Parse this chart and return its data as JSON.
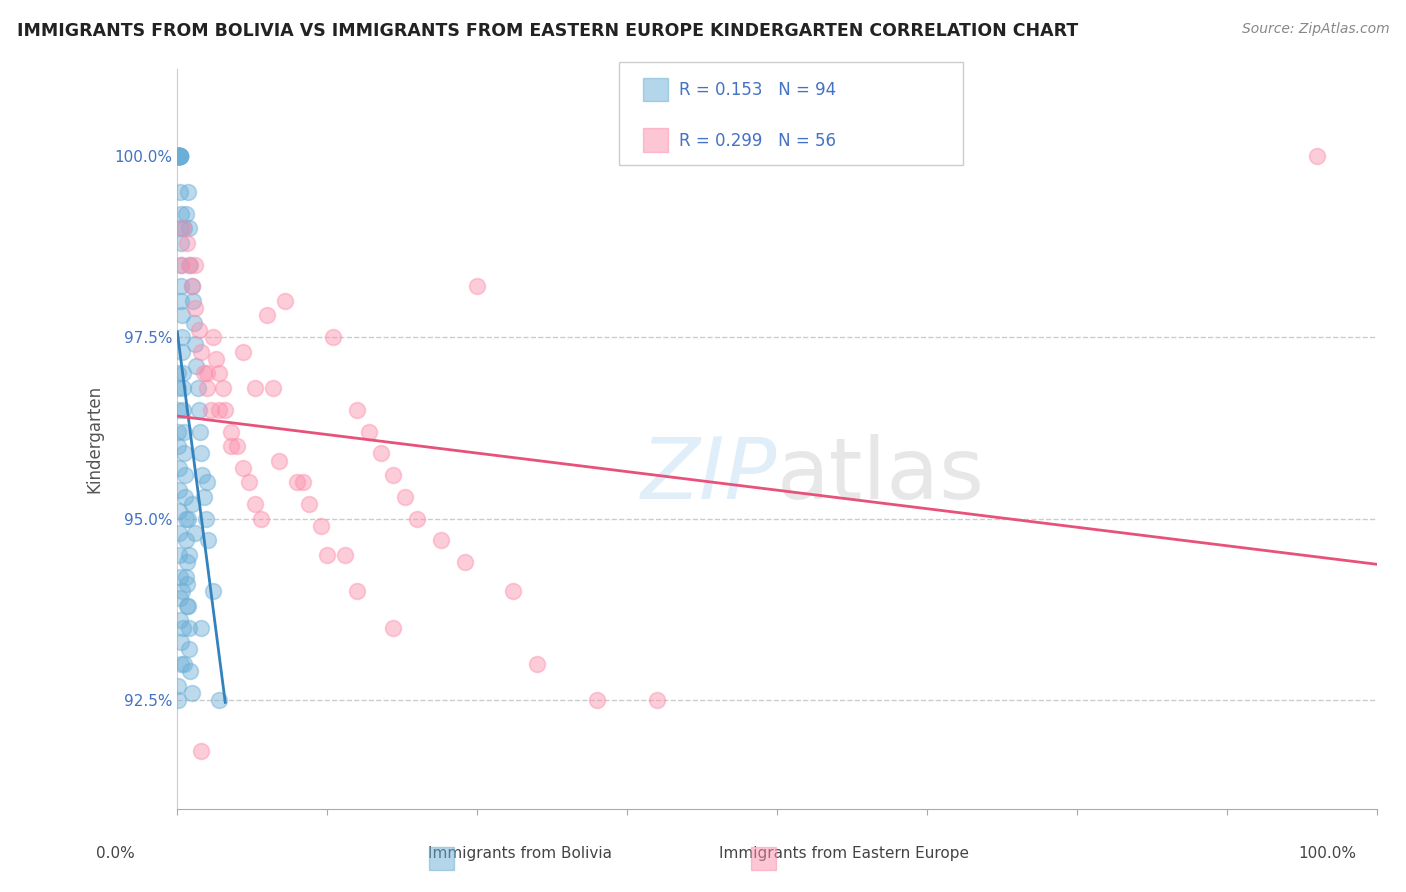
{
  "title": "IMMIGRANTS FROM BOLIVIA VS IMMIGRANTS FROM EASTERN EUROPE KINDERGARTEN CORRELATION CHART",
  "source_text": "Source: ZipAtlas.com",
  "ylabel": "Kindergarten",
  "bolivia_R": 0.153,
  "bolivia_N": 94,
  "eastern_R": 0.299,
  "eastern_N": 56,
  "bolivia_color": "#6baed6",
  "eastern_color": "#fc8eac",
  "bolivia_line_color": "#3182bd",
  "eastern_line_color": "#e8527a",
  "x_min": 0.0,
  "x_max": 100.0,
  "y_min": 91.0,
  "y_max": 101.2,
  "yticks": [
    92.5,
    95.0,
    97.5,
    100.0
  ],
  "ytick_labels": [
    "92.5%",
    "95.0%",
    "97.5%",
    "100.0%"
  ],
  "bolivia_x": [
    0.05,
    0.08,
    0.1,
    0.1,
    0.1,
    0.12,
    0.12,
    0.13,
    0.14,
    0.15,
    0.15,
    0.16,
    0.17,
    0.18,
    0.19,
    0.2,
    0.21,
    0.22,
    0.23,
    0.24,
    0.25,
    0.27,
    0.28,
    0.3,
    0.32,
    0.33,
    0.35,
    0.38,
    0.4,
    0.43,
    0.45,
    0.48,
    0.5,
    0.55,
    0.55,
    0.6,
    0.62,
    0.65,
    0.7,
    0.7,
    0.75,
    0.8,
    0.85,
    0.9,
    0.9,
    0.95,
    1.0,
    1.0,
    1.1,
    1.1,
    1.2,
    1.2,
    1.3,
    1.4,
    1.5,
    1.6,
    1.7,
    1.8,
    1.9,
    2.0,
    2.1,
    2.2,
    2.4,
    2.6,
    0.06,
    0.07,
    0.08,
    0.09,
    0.1,
    0.11,
    0.12,
    0.13,
    0.15,
    0.17,
    0.19,
    0.22,
    0.25,
    0.3,
    0.35,
    0.4,
    0.5,
    0.6,
    0.7,
    0.8,
    0.9,
    1.0,
    1.2,
    1.5,
    2.0,
    2.5,
    3.0,
    3.5,
    0.1,
    0.1
  ],
  "bolivia_y": [
    100.0,
    100.0,
    100.0,
    100.0,
    100.0,
    100.0,
    100.0,
    100.0,
    100.0,
    100.0,
    100.0,
    100.0,
    100.0,
    100.0,
    100.0,
    100.0,
    100.0,
    100.0,
    100.0,
    100.0,
    99.5,
    99.2,
    99.0,
    98.8,
    98.5,
    98.2,
    98.0,
    97.8,
    97.5,
    97.3,
    97.0,
    96.8,
    96.5,
    96.2,
    99.0,
    95.9,
    95.6,
    95.3,
    99.2,
    95.0,
    94.7,
    94.4,
    94.1,
    99.5,
    93.8,
    93.5,
    99.0,
    93.2,
    98.5,
    92.9,
    98.2,
    92.6,
    98.0,
    97.7,
    97.4,
    97.1,
    96.8,
    96.5,
    96.2,
    95.9,
    95.6,
    95.3,
    95.0,
    94.7,
    97.0,
    96.8,
    96.5,
    96.2,
    96.0,
    95.7,
    95.4,
    95.1,
    94.8,
    94.5,
    94.2,
    93.9,
    93.6,
    93.3,
    93.0,
    94.0,
    93.5,
    93.0,
    94.2,
    93.8,
    95.0,
    94.5,
    95.2,
    94.8,
    93.5,
    95.5,
    94.0,
    92.5,
    92.7,
    92.5
  ],
  "eastern_x": [
    0.3,
    0.5,
    0.8,
    1.0,
    1.2,
    1.5,
    1.8,
    2.0,
    2.2,
    2.5,
    2.8,
    3.0,
    3.2,
    3.5,
    3.8,
    4.0,
    4.5,
    5.0,
    5.5,
    6.0,
    6.5,
    7.0,
    7.5,
    8.0,
    9.0,
    10.0,
    11.0,
    12.0,
    13.0,
    14.0,
    15.0,
    16.0,
    17.0,
    18.0,
    19.0,
    20.0,
    22.0,
    24.0,
    25.0,
    28.0,
    1.5,
    2.5,
    3.5,
    4.5,
    5.5,
    6.5,
    8.5,
    10.5,
    12.5,
    15.0,
    18.0,
    30.0,
    35.0,
    40.0,
    95.0,
    2.0
  ],
  "eastern_y": [
    98.5,
    99.0,
    98.8,
    98.5,
    98.2,
    97.9,
    97.6,
    97.3,
    97.0,
    96.8,
    96.5,
    97.5,
    97.2,
    97.0,
    96.8,
    96.5,
    96.2,
    96.0,
    95.7,
    95.5,
    95.2,
    95.0,
    97.8,
    96.8,
    98.0,
    95.5,
    95.2,
    94.9,
    97.5,
    94.5,
    96.5,
    96.2,
    95.9,
    95.6,
    95.3,
    95.0,
    94.7,
    94.4,
    98.2,
    94.0,
    98.5,
    97.0,
    96.5,
    96.0,
    97.3,
    96.8,
    95.8,
    95.5,
    94.5,
    94.0,
    93.5,
    93.0,
    92.5,
    92.5,
    100.0,
    91.8
  ]
}
